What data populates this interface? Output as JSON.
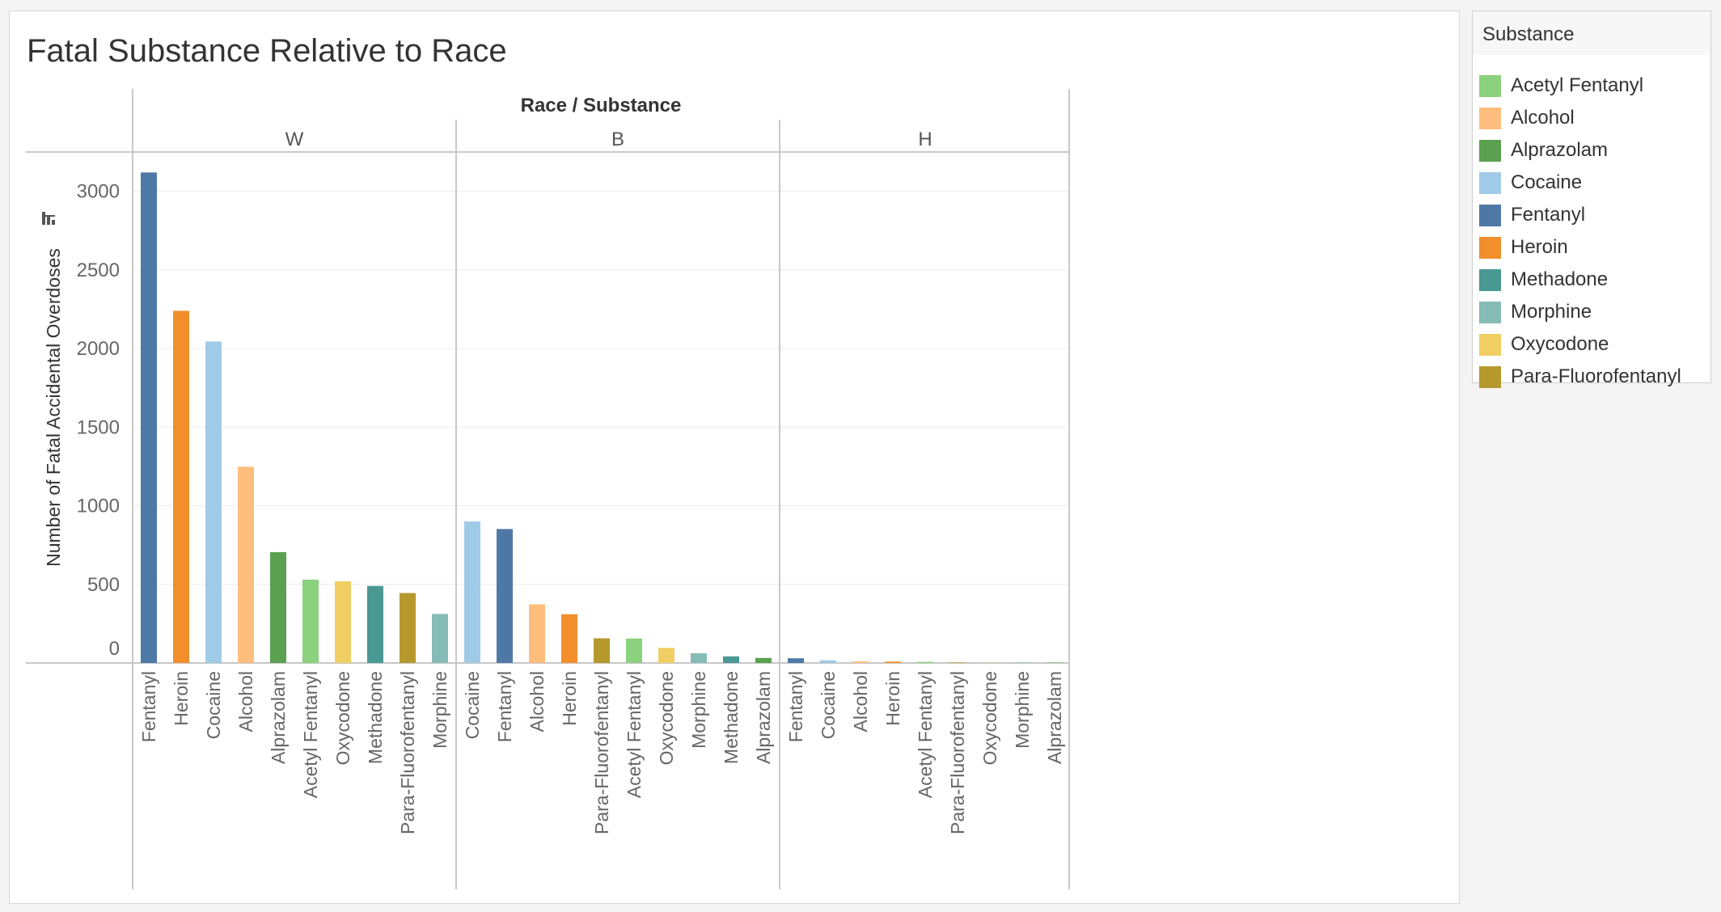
{
  "chart_data": {
    "type": "bar",
    "title": "Fatal Substance Relative to Race",
    "header": "Race / Substance",
    "ylabel": "Number of Fatal Accidental Overdoses",
    "ylim": [
      0,
      3250
    ],
    "yticks": [
      0,
      500,
      1000,
      1500,
      2000,
      2500,
      3000
    ],
    "grid": true,
    "legend_position": "right",
    "legend_title": "Substance",
    "colors": {
      "Acetyl Fentanyl": "#8cd17d",
      "Alcohol": "#ffbe7d",
      "Alprazolam": "#59a14f",
      "Cocaine": "#a0cbe8",
      "Fentanyl": "#4e79a7",
      "Heroin": "#f28e2b",
      "Methadone": "#499894",
      "Morphine": "#86bcb6",
      "Oxycodone": "#f1ce63",
      "Para-Fluorofentanyl": "#b6992d"
    },
    "panels": [
      {
        "race": "W",
        "categories": [
          "Fentanyl",
          "Heroin",
          "Cocaine",
          "Alcohol",
          "Alprazolam",
          "Acetyl Fentanyl",
          "Oxycodone",
          "Methadone",
          "Para-Fluorofentanyl",
          "Morphine"
        ],
        "values": [
          3120,
          2240,
          2045,
          1248,
          705,
          530,
          520,
          490,
          445,
          312
        ]
      },
      {
        "race": "B",
        "categories": [
          "Cocaine",
          "Fentanyl",
          "Alcohol",
          "Heroin",
          "Para-Fluorofentanyl",
          "Acetyl Fentanyl",
          "Oxycodone",
          "Morphine",
          "Methadone",
          "Alprazolam"
        ],
        "values": [
          900,
          852,
          373,
          310,
          157,
          156,
          96,
          62,
          42,
          32
        ]
      },
      {
        "race": "H",
        "categories": [
          "Fentanyl",
          "Cocaine",
          "Alcohol",
          "Heroin",
          "Acetyl Fentanyl",
          "Para-Fluorofentanyl",
          "Oxycodone",
          "Morphine",
          "Alprazolam"
        ],
        "values": [
          30,
          17,
          10,
          9,
          7,
          3,
          2,
          2,
          2
        ]
      }
    ]
  }
}
